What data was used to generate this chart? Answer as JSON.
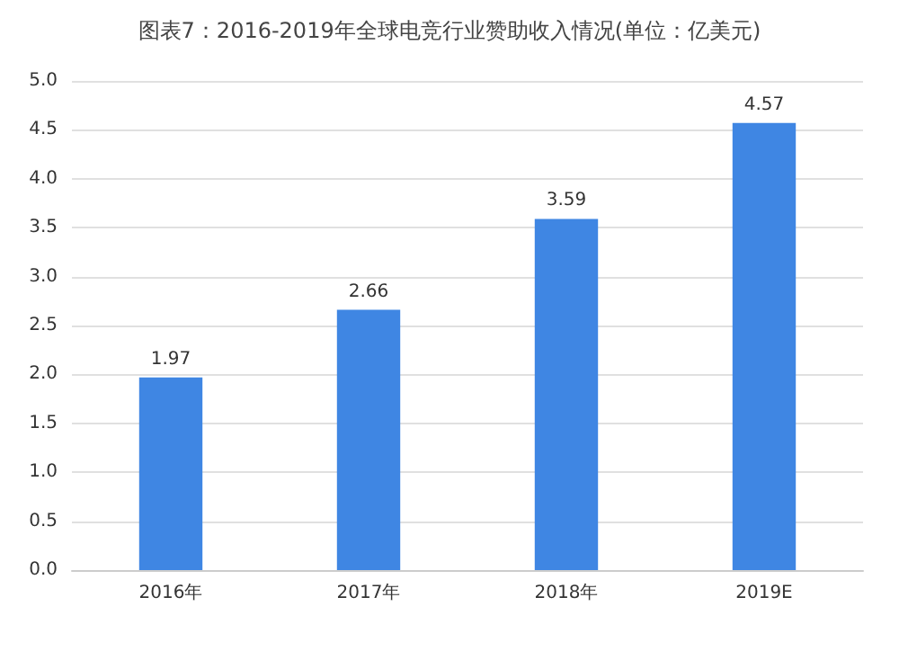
{
  "chart_data": {
    "type": "bar",
    "title": "图表7：2016-2019年全球电竞行业赞助收入情况(单位：亿美元)",
    "categories": [
      "2016年",
      "2017年",
      "2018年",
      "2019E"
    ],
    "values": [
      1.97,
      2.66,
      3.59,
      4.57
    ],
    "color": "#3f86e3",
    "ylim": [
      0,
      5
    ],
    "yticks": [
      {
        "value": 0,
        "label": "0.0"
      },
      0.5,
      {
        "value": 1,
        "label": "1.0"
      },
      1.5,
      {
        "value": 2,
        "label": "2.0"
      },
      2.5,
      {
        "value": 3,
        "label": "3.0"
      },
      3.5,
      {
        "value": 4,
        "label": "4.0"
      },
      4.5,
      {
        "value": 5,
        "label": "5.0"
      }
    ],
    "grid": "y",
    "data_labels": true
  }
}
